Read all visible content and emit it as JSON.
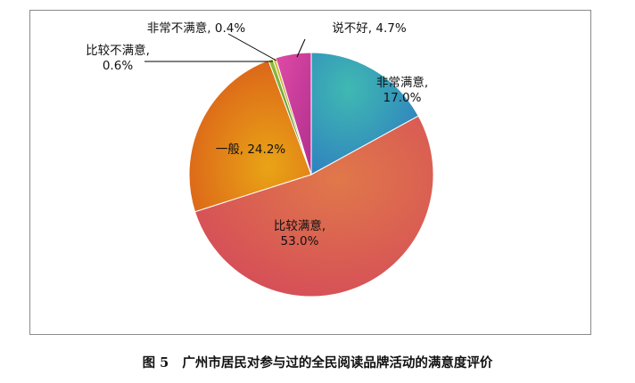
{
  "caption": {
    "figure_label": "图 5",
    "text": "广州市居民对参与过的全民阅读品牌活动的满意度评价"
  },
  "chart_data": {
    "type": "pie",
    "title": "",
    "start_angle_deg": 0,
    "direction": "clockwise",
    "slices": [
      {
        "label": "非常满意,",
        "value": 17.0,
        "display": "17.0%",
        "color": "#3a9fb0"
      },
      {
        "label": "比较满意,",
        "value": 53.0,
        "display": "53.0%",
        "color": "#d9624a"
      },
      {
        "label": "一般,",
        "value": 24.2,
        "display": "24.2%",
        "color": "#e08a1c"
      },
      {
        "label": "比较不满意,",
        "value": 0.6,
        "display": "0.6%",
        "color": "#6f9a3a"
      },
      {
        "label": "非常不满意,",
        "value": 0.4,
        "display": "0.4%",
        "color": "#b0a020"
      },
      {
        "label": "说不好,",
        "value": 4.7,
        "display": "4.7%",
        "color": "#cc3f9e"
      }
    ]
  }
}
